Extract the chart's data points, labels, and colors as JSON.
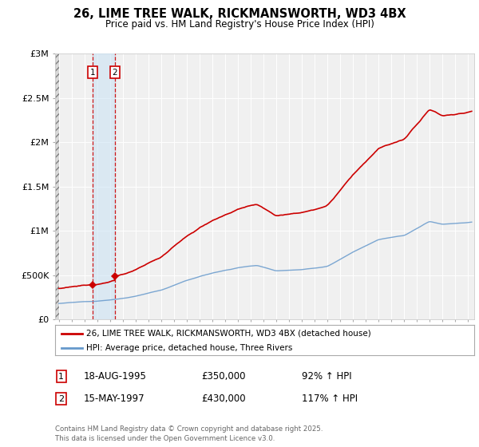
{
  "title": "26, LIME TREE WALK, RICKMANSWORTH, WD3 4BX",
  "subtitle": "Price paid vs. HM Land Registry's House Price Index (HPI)",
  "legend_line1": "26, LIME TREE WALK, RICKMANSWORTH, WD3 4BX (detached house)",
  "legend_line2": "HPI: Average price, detached house, Three Rivers",
  "footer": "Contains HM Land Registry data © Crown copyright and database right 2025.\nThis data is licensed under the Open Government Licence v3.0.",
  "sale1_date": "18-AUG-1995",
  "sale1_price": "£350,000",
  "sale1_hpi": "92% ↑ HPI",
  "sale1_x": 1995.63,
  "sale1_y": 350000,
  "sale2_date": "15-MAY-1997",
  "sale2_price": "£430,000",
  "sale2_hpi": "117% ↑ HPI",
  "sale2_x": 1997.37,
  "sale2_y": 430000,
  "hpi_color": "#6699cc",
  "price_color": "#cc0000",
  "background_color": "#ffffff",
  "plot_bg_color": "#f0f0f0",
  "ylim": [
    0,
    3000000
  ],
  "xlim_start": 1992.7,
  "xlim_end": 2025.5,
  "yticks": [
    0,
    500000,
    1000000,
    1500000,
    2000000,
    2500000,
    3000000
  ],
  "ytick_labels": [
    "£0",
    "£500K",
    "£1M",
    "£1.5M",
    "£2M",
    "£2.5M",
    "£3M"
  ],
  "xticks": [
    1993,
    1994,
    1995,
    1996,
    1997,
    1998,
    1999,
    2000,
    2001,
    2002,
    2003,
    2004,
    2005,
    2006,
    2007,
    2008,
    2009,
    2010,
    2011,
    2012,
    2013,
    2014,
    2015,
    2016,
    2017,
    2018,
    2019,
    2020,
    2021,
    2022,
    2023,
    2024,
    2025
  ]
}
